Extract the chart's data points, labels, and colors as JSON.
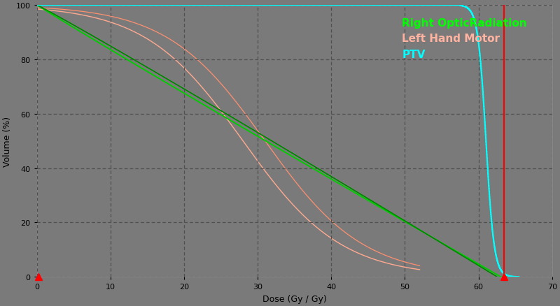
{
  "background_color": "#7a7a7a",
  "plot_bg_color": "#7a7a7a",
  "xlabel": "Dose (Gy / Gy)",
  "ylabel": "Volume (%)",
  "xlim": [
    0,
    70
  ],
  "ylim": [
    0,
    100
  ],
  "xticks": [
    0,
    10,
    20,
    30,
    40,
    50,
    60,
    70
  ],
  "yticks": [
    0,
    20,
    40,
    60,
    80,
    100
  ],
  "legend_entries": [
    {
      "label": "Right OpticRadiation",
      "color": "#00FF00"
    },
    {
      "label": "Left Hand Motor",
      "color": "#FFB3A0"
    },
    {
      "label": "PTV",
      "color": "#00FFFF"
    }
  ],
  "red_line_x": 63.5,
  "red_triangle_x1": 0.2,
  "red_triangle_x2": 63.5,
  "right_optic": {
    "color1": "#00DD00",
    "color2": "#009900",
    "end_x": 63.0
  },
  "left_hand": {
    "color1": "#FFAA90",
    "color2": "#FF9070",
    "sigmoid_mid1": 28,
    "sigmoid_mid2": 31,
    "steepness": 0.15,
    "end_x": 52.0
  },
  "ptv": {
    "color": "#00FFFF",
    "flat_end": 57.5,
    "drop_end": 65.5
  }
}
